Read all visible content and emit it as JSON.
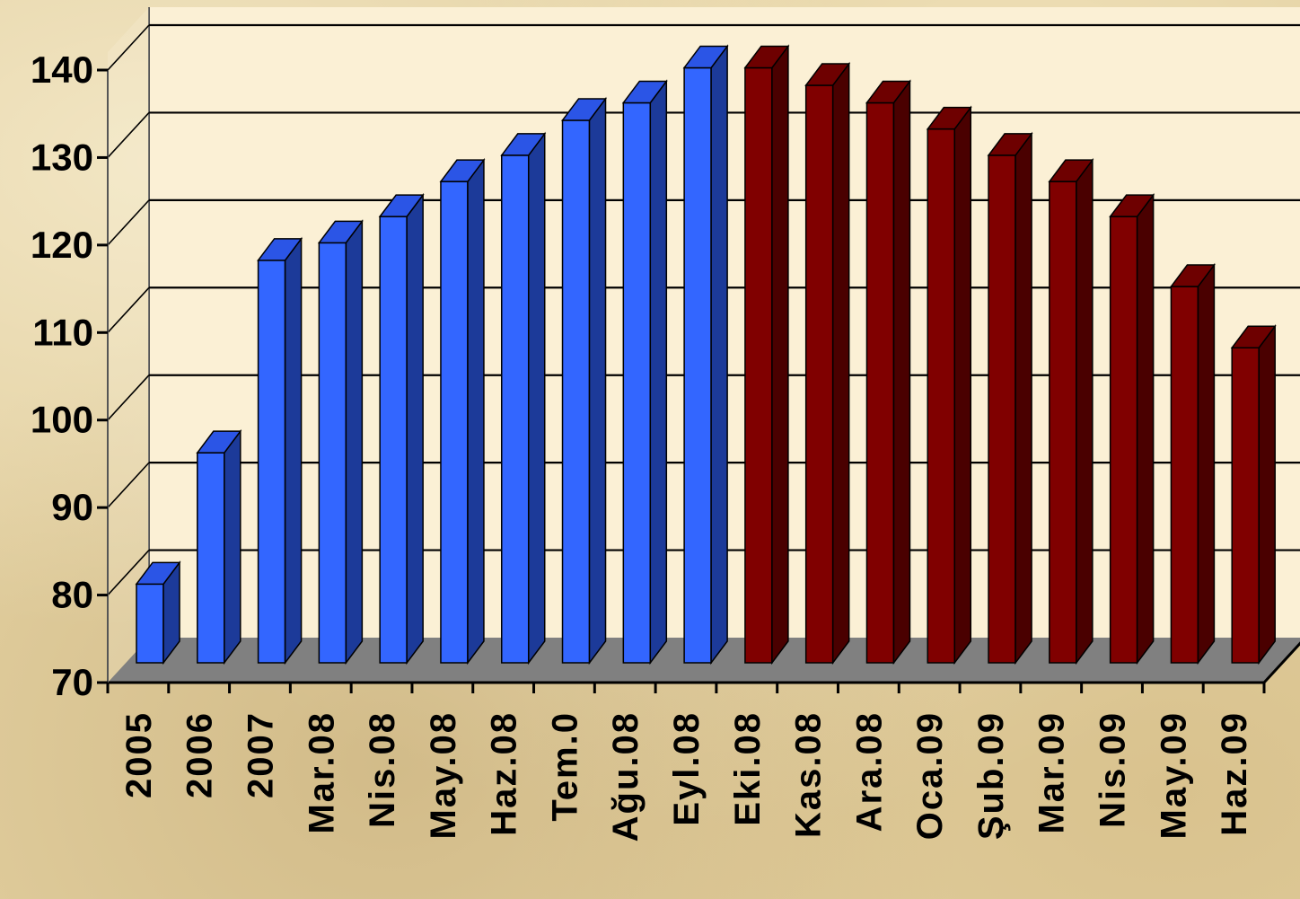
{
  "chart_data": {
    "type": "bar",
    "title": "",
    "xlabel": "",
    "ylabel": "",
    "ylim": [
      70,
      140
    ],
    "yticks": [
      70,
      80,
      90,
      100,
      110,
      120,
      130,
      140
    ],
    "grid": true,
    "legend": "none",
    "style": "3d-column",
    "categories": [
      "2005",
      "2006",
      "2007",
      "Mar.08",
      "Nis.08",
      "May.08",
      "Haz.08",
      "Tem.0",
      "Ağu.08",
      "Eyl.08",
      "Eki.08",
      "Kas.08",
      "Ara.08",
      "Oca.09",
      "Şub.09",
      "Mar.09",
      "Nis.09",
      "May.09",
      "Haz.09"
    ],
    "values": [
      79,
      94,
      116,
      118,
      121,
      125,
      128,
      132,
      134,
      138,
      138,
      136,
      134,
      131,
      128,
      125,
      121,
      113,
      106
    ],
    "bar_colors": [
      "#3366ff",
      "#3366ff",
      "#3366ff",
      "#3366ff",
      "#3366ff",
      "#3366ff",
      "#3366ff",
      "#3366ff",
      "#3366ff",
      "#3366ff",
      "#800000",
      "#800000",
      "#800000",
      "#800000",
      "#800000",
      "#800000",
      "#800000",
      "#800000",
      "#800000"
    ]
  },
  "colors": {
    "blue_face": "#3366ff",
    "blue_top": "#2b55e6",
    "blue_side": "#1c3a99",
    "red_face": "#800000",
    "red_top": "#6e0000",
    "red_side": "#4a0000",
    "floor": "#808080",
    "plot_back": "#fbf0d5",
    "grid": "#000000"
  }
}
